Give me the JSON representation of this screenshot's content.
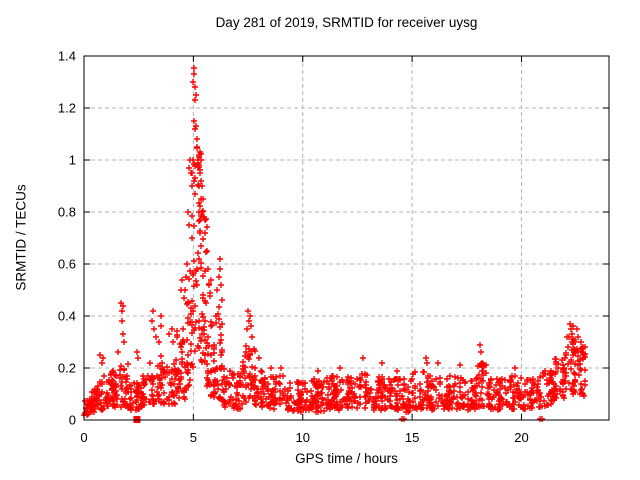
{
  "chart_data": {
    "type": "scatter",
    "title": "Day 281 of 2019, SRMTID for receiver uysg",
    "xlabel": "GPS time / hours",
    "ylabel": "SRMTID / TECUs",
    "xlim": [
      0,
      24
    ],
    "ylim": [
      0,
      1.4
    ],
    "xticks": [
      0,
      5,
      10,
      15,
      20
    ],
    "xtick_labels": [
      "0",
      "5",
      "10",
      "15",
      "20"
    ],
    "yticks": [
      0,
      0.2,
      0.4,
      0.6,
      0.8,
      1,
      1.2,
      1.4
    ],
    "ytick_labels": [
      "0",
      "0.2",
      "0.4",
      "0.6",
      "0.8",
      "1",
      "1.2",
      "1.4"
    ],
    "grid": true,
    "legend": "none",
    "marker": "plus-cross",
    "marker_color": "#ff0000",
    "grid_color": "#b4b4b4",
    "frame_color": "#000000",
    "series": [
      {
        "name": "SRMTID",
        "style": "dense scatter of + markers; band_bins give [hour_start, hour_end, value_low, value_high, point_count] envelopes read from the plot",
        "band_bins": [
          [
            0.0,
            0.3,
            0.02,
            0.08,
            20
          ],
          [
            0.3,
            0.6,
            0.03,
            0.12,
            24
          ],
          [
            0.6,
            0.9,
            0.04,
            0.15,
            26
          ],
          [
            0.9,
            1.3,
            0.05,
            0.18,
            32
          ],
          [
            1.3,
            1.7,
            0.05,
            0.2,
            30
          ],
          [
            1.7,
            2.0,
            0.05,
            0.22,
            26
          ],
          [
            2.0,
            2.6,
            0.04,
            0.15,
            38
          ],
          [
            2.6,
            3.0,
            0.05,
            0.18,
            28
          ],
          [
            3.0,
            3.6,
            0.06,
            0.25,
            42
          ],
          [
            3.6,
            4.2,
            0.06,
            0.22,
            42
          ],
          [
            4.2,
            4.7,
            0.08,
            0.35,
            38
          ],
          [
            4.7,
            4.9,
            0.1,
            0.6,
            20
          ],
          [
            4.9,
            5.1,
            0.2,
            1.0,
            30
          ],
          [
            5.1,
            5.35,
            0.25,
            1.05,
            36
          ],
          [
            5.35,
            5.6,
            0.2,
            0.85,
            30
          ],
          [
            5.6,
            5.8,
            0.12,
            0.55,
            22
          ],
          [
            5.8,
            6.0,
            0.08,
            0.38,
            22
          ],
          [
            6.0,
            6.35,
            0.07,
            0.45,
            28
          ],
          [
            6.35,
            6.7,
            0.05,
            0.2,
            26
          ],
          [
            6.7,
            7.2,
            0.04,
            0.18,
            34
          ],
          [
            7.2,
            7.8,
            0.06,
            0.3,
            46
          ],
          [
            7.8,
            8.2,
            0.05,
            0.2,
            30
          ],
          [
            8.2,
            9.2,
            0.04,
            0.17,
            62
          ],
          [
            9.2,
            10.0,
            0.03,
            0.15,
            52
          ],
          [
            10.0,
            11.0,
            0.03,
            0.16,
            64
          ],
          [
            11.0,
            12.0,
            0.04,
            0.17,
            64
          ],
          [
            12.0,
            13.0,
            0.04,
            0.18,
            64
          ],
          [
            13.0,
            14.0,
            0.04,
            0.17,
            64
          ],
          [
            14.0,
            15.0,
            0.03,
            0.16,
            62
          ],
          [
            15.0,
            16.0,
            0.04,
            0.19,
            64
          ],
          [
            16.0,
            17.0,
            0.04,
            0.17,
            62
          ],
          [
            17.0,
            18.0,
            0.04,
            0.17,
            62
          ],
          [
            18.0,
            18.4,
            0.05,
            0.22,
            28
          ],
          [
            18.4,
            19.5,
            0.04,
            0.16,
            66
          ],
          [
            19.5,
            20.5,
            0.04,
            0.17,
            62
          ],
          [
            20.5,
            21.5,
            0.05,
            0.19,
            64
          ],
          [
            21.5,
            22.0,
            0.08,
            0.25,
            36
          ],
          [
            22.0,
            22.5,
            0.1,
            0.32,
            40
          ],
          [
            22.5,
            22.95,
            0.09,
            0.28,
            32
          ]
        ],
        "spike_points": [
          [
            4.75,
            0.8
          ],
          [
            4.78,
            0.75
          ],
          [
            4.82,
            0.97
          ],
          [
            4.85,
            1.0
          ],
          [
            4.88,
            0.95
          ],
          [
            4.97,
            1.0
          ],
          [
            5.0,
            1.3
          ],
          [
            5.02,
            1.355
          ],
          [
            5.04,
            1.15
          ],
          [
            5.05,
            1.33
          ],
          [
            5.06,
            1.23
          ],
          [
            5.08,
            1.28
          ],
          [
            5.08,
            1.12
          ],
          [
            5.1,
            1.25
          ],
          [
            5.12,
            1.13
          ],
          [
            5.15,
            1.05
          ],
          [
            5.18,
            1.08
          ],
          [
            5.2,
            1.0
          ],
          [
            5.22,
            0.99
          ],
          [
            5.25,
            1.02
          ],
          [
            5.28,
            0.96
          ],
          [
            5.3,
            0.95
          ],
          [
            5.35,
            0.92
          ],
          [
            5.4,
            0.9
          ],
          [
            5.45,
            0.85
          ],
          [
            5.5,
            0.78
          ],
          [
            5.55,
            0.72
          ],
          [
            5.6,
            0.65
          ],
          [
            5.65,
            0.58
          ],
          [
            5.7,
            0.52
          ],
          [
            0.75,
            0.25
          ],
          [
            0.8,
            0.22
          ],
          [
            0.85,
            0.24
          ],
          [
            1.55,
            0.26
          ],
          [
            1.7,
            0.45
          ],
          [
            1.73,
            0.42
          ],
          [
            1.75,
            0.38
          ],
          [
            1.78,
            0.44
          ],
          [
            1.8,
            0.33
          ],
          [
            1.85,
            0.3
          ],
          [
            2.4,
            0.26
          ],
          [
            2.45,
            0.24
          ],
          [
            3.1,
            0.38
          ],
          [
            3.15,
            0.42
          ],
          [
            3.2,
            0.35
          ],
          [
            3.3,
            0.32
          ],
          [
            3.45,
            0.3
          ],
          [
            3.5,
            0.4
          ],
          [
            3.52,
            0.36
          ],
          [
            3.9,
            0.33
          ],
          [
            4.0,
            0.35
          ],
          [
            4.05,
            0.3
          ],
          [
            4.45,
            0.5
          ],
          [
            4.5,
            0.54
          ],
          [
            4.55,
            0.47
          ],
          [
            4.6,
            0.5
          ],
          [
            4.65,
            0.55
          ],
          [
            4.7,
            0.6
          ],
          [
            6.1,
            0.5
          ],
          [
            6.15,
            0.55
          ],
          [
            6.2,
            0.62
          ],
          [
            6.22,
            0.58
          ],
          [
            6.25,
            0.52
          ],
          [
            6.3,
            0.46
          ],
          [
            7.45,
            0.35
          ],
          [
            7.5,
            0.42
          ],
          [
            7.52,
            0.38
          ],
          [
            7.58,
            0.4
          ],
          [
            7.62,
            0.36
          ],
          [
            7.68,
            0.32
          ],
          [
            8.0,
            0.24
          ],
          [
            8.55,
            0.2
          ],
          [
            9.0,
            0.2
          ],
          [
            10.7,
            0.19
          ],
          [
            11.7,
            0.2
          ],
          [
            12.75,
            0.24
          ],
          [
            13.6,
            0.22
          ],
          [
            14.3,
            0.19
          ],
          [
            15.65,
            0.24
          ],
          [
            15.7,
            0.22
          ],
          [
            16.2,
            0.22
          ],
          [
            17.2,
            0.21
          ],
          [
            18.1,
            0.29
          ],
          [
            18.15,
            0.26
          ],
          [
            19.7,
            0.2
          ],
          [
            22.15,
            0.32
          ],
          [
            22.2,
            0.37
          ],
          [
            22.25,
            0.35
          ],
          [
            22.3,
            0.33
          ],
          [
            22.35,
            0.36
          ],
          [
            22.45,
            0.3
          ],
          [
            22.55,
            0.35
          ],
          [
            22.6,
            0.32
          ],
          [
            22.7,
            0.3
          ],
          [
            22.8,
            0.28
          ]
        ],
        "zero_points": [
          [
            14.55,
            0.004
          ],
          [
            14.65,
            0.004
          ],
          [
            20.85,
            0.004
          ],
          [
            20.95,
            0.004
          ]
        ]
      },
      {
        "name": "flagged-point",
        "marker": "filled-square",
        "color": "#ff0000",
        "points": [
          [
            2.42,
            0.002
          ]
        ]
      }
    ]
  }
}
